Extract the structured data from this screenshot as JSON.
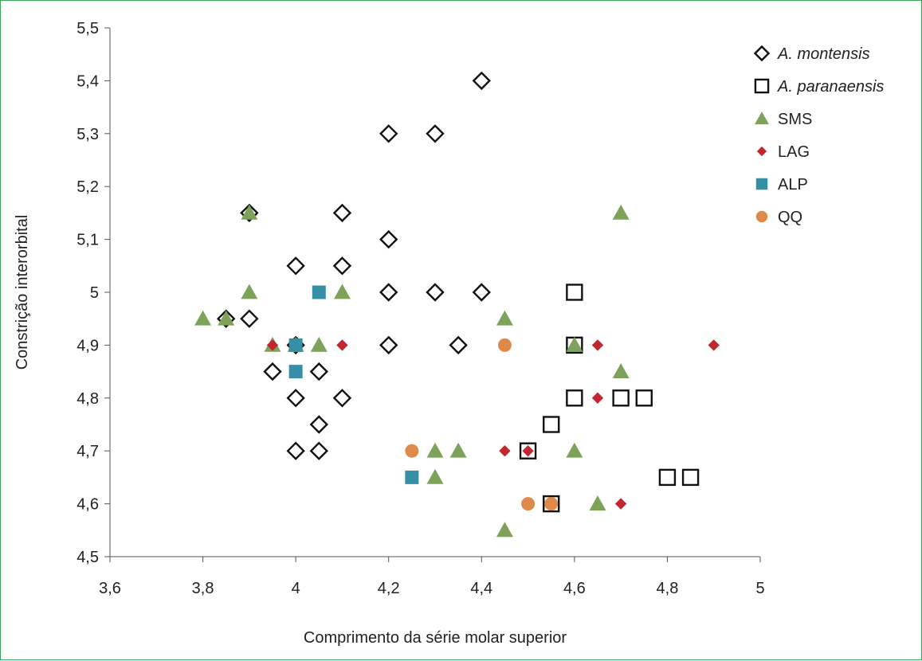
{
  "chart_data": {
    "type": "scatter",
    "xlabel": "Comprimento da série molar superior",
    "ylabel": "Constrição interorbital",
    "xlim": [
      3.6,
      5.0
    ],
    "ylim": [
      4.5,
      5.5
    ],
    "x_ticks": [
      "3,6",
      "3,8",
      "4",
      "4,2",
      "4,4",
      "4,6",
      "4,8",
      "5"
    ],
    "y_ticks": [
      "4,5",
      "4,6",
      "4,7",
      "4,8",
      "4,9",
      "5",
      "5,1",
      "5,2",
      "5,3",
      "5,4",
      "5,5"
    ],
    "grid": false,
    "legend_position": "top-right",
    "series": [
      {
        "name": "A. montensis",
        "name_italic": true,
        "marker": "diamond-open",
        "color": "#111111",
        "points": [
          [
            4.4,
            5.4
          ],
          [
            4.2,
            5.3
          ],
          [
            4.3,
            5.3
          ],
          [
            3.9,
            5.15
          ],
          [
            4.1,
            5.15
          ],
          [
            4.2,
            5.1
          ],
          [
            4.0,
            5.05
          ],
          [
            4.1,
            5.05
          ],
          [
            4.2,
            5.0
          ],
          [
            4.3,
            5.0
          ],
          [
            4.4,
            5.0
          ],
          [
            3.85,
            4.95
          ],
          [
            3.9,
            4.95
          ],
          [
            4.0,
            4.9
          ],
          [
            4.2,
            4.9
          ],
          [
            4.35,
            4.9
          ],
          [
            3.95,
            4.85
          ],
          [
            4.05,
            4.85
          ],
          [
            4.0,
            4.8
          ],
          [
            4.1,
            4.8
          ],
          [
            4.05,
            4.75
          ],
          [
            4.0,
            4.7
          ],
          [
            4.05,
            4.7
          ]
        ]
      },
      {
        "name": "A. paranaensis",
        "name_italic": true,
        "marker": "square-open",
        "color": "#111111",
        "points": [
          [
            4.6,
            5.0
          ],
          [
            4.6,
            4.9
          ],
          [
            4.6,
            4.8
          ],
          [
            4.7,
            4.8
          ],
          [
            4.75,
            4.8
          ],
          [
            4.55,
            4.75
          ],
          [
            4.5,
            4.7
          ],
          [
            4.8,
            4.65
          ],
          [
            4.85,
            4.65
          ],
          [
            4.55,
            4.6
          ]
        ]
      },
      {
        "name": "SMS",
        "name_italic": false,
        "marker": "triangle",
        "color": "#7da35a",
        "points": [
          [
            3.9,
            5.15
          ],
          [
            4.7,
            5.15
          ],
          [
            3.9,
            5.0
          ],
          [
            4.1,
            5.0
          ],
          [
            3.8,
            4.95
          ],
          [
            3.85,
            4.95
          ],
          [
            4.45,
            4.95
          ],
          [
            3.95,
            4.9
          ],
          [
            4.0,
            4.9
          ],
          [
            4.05,
            4.9
          ],
          [
            4.6,
            4.9
          ],
          [
            4.7,
            4.85
          ],
          [
            4.3,
            4.7
          ],
          [
            4.35,
            4.7
          ],
          [
            4.6,
            4.7
          ],
          [
            4.3,
            4.65
          ],
          [
            4.65,
            4.6
          ],
          [
            4.45,
            4.55
          ]
        ]
      },
      {
        "name": "LAG",
        "name_italic": false,
        "marker": "diamond",
        "color": "#c0282f",
        "points": [
          [
            3.95,
            4.9
          ],
          [
            4.1,
            4.9
          ],
          [
            4.65,
            4.9
          ],
          [
            4.9,
            4.9
          ],
          [
            4.65,
            4.8
          ],
          [
            4.45,
            4.7
          ],
          [
            4.5,
            4.7
          ],
          [
            4.7,
            4.6
          ]
        ]
      },
      {
        "name": "ALP",
        "name_italic": false,
        "marker": "square",
        "color": "#3590a6",
        "points": [
          [
            4.05,
            5.0
          ],
          [
            4.0,
            4.9
          ],
          [
            4.0,
            4.85
          ],
          [
            4.25,
            4.65
          ]
        ]
      },
      {
        "name": "QQ",
        "name_italic": false,
        "marker": "circle",
        "color": "#e08a4a",
        "points": [
          [
            4.45,
            4.9
          ],
          [
            4.25,
            4.7
          ],
          [
            4.5,
            4.6
          ],
          [
            4.55,
            4.6
          ]
        ]
      }
    ]
  }
}
